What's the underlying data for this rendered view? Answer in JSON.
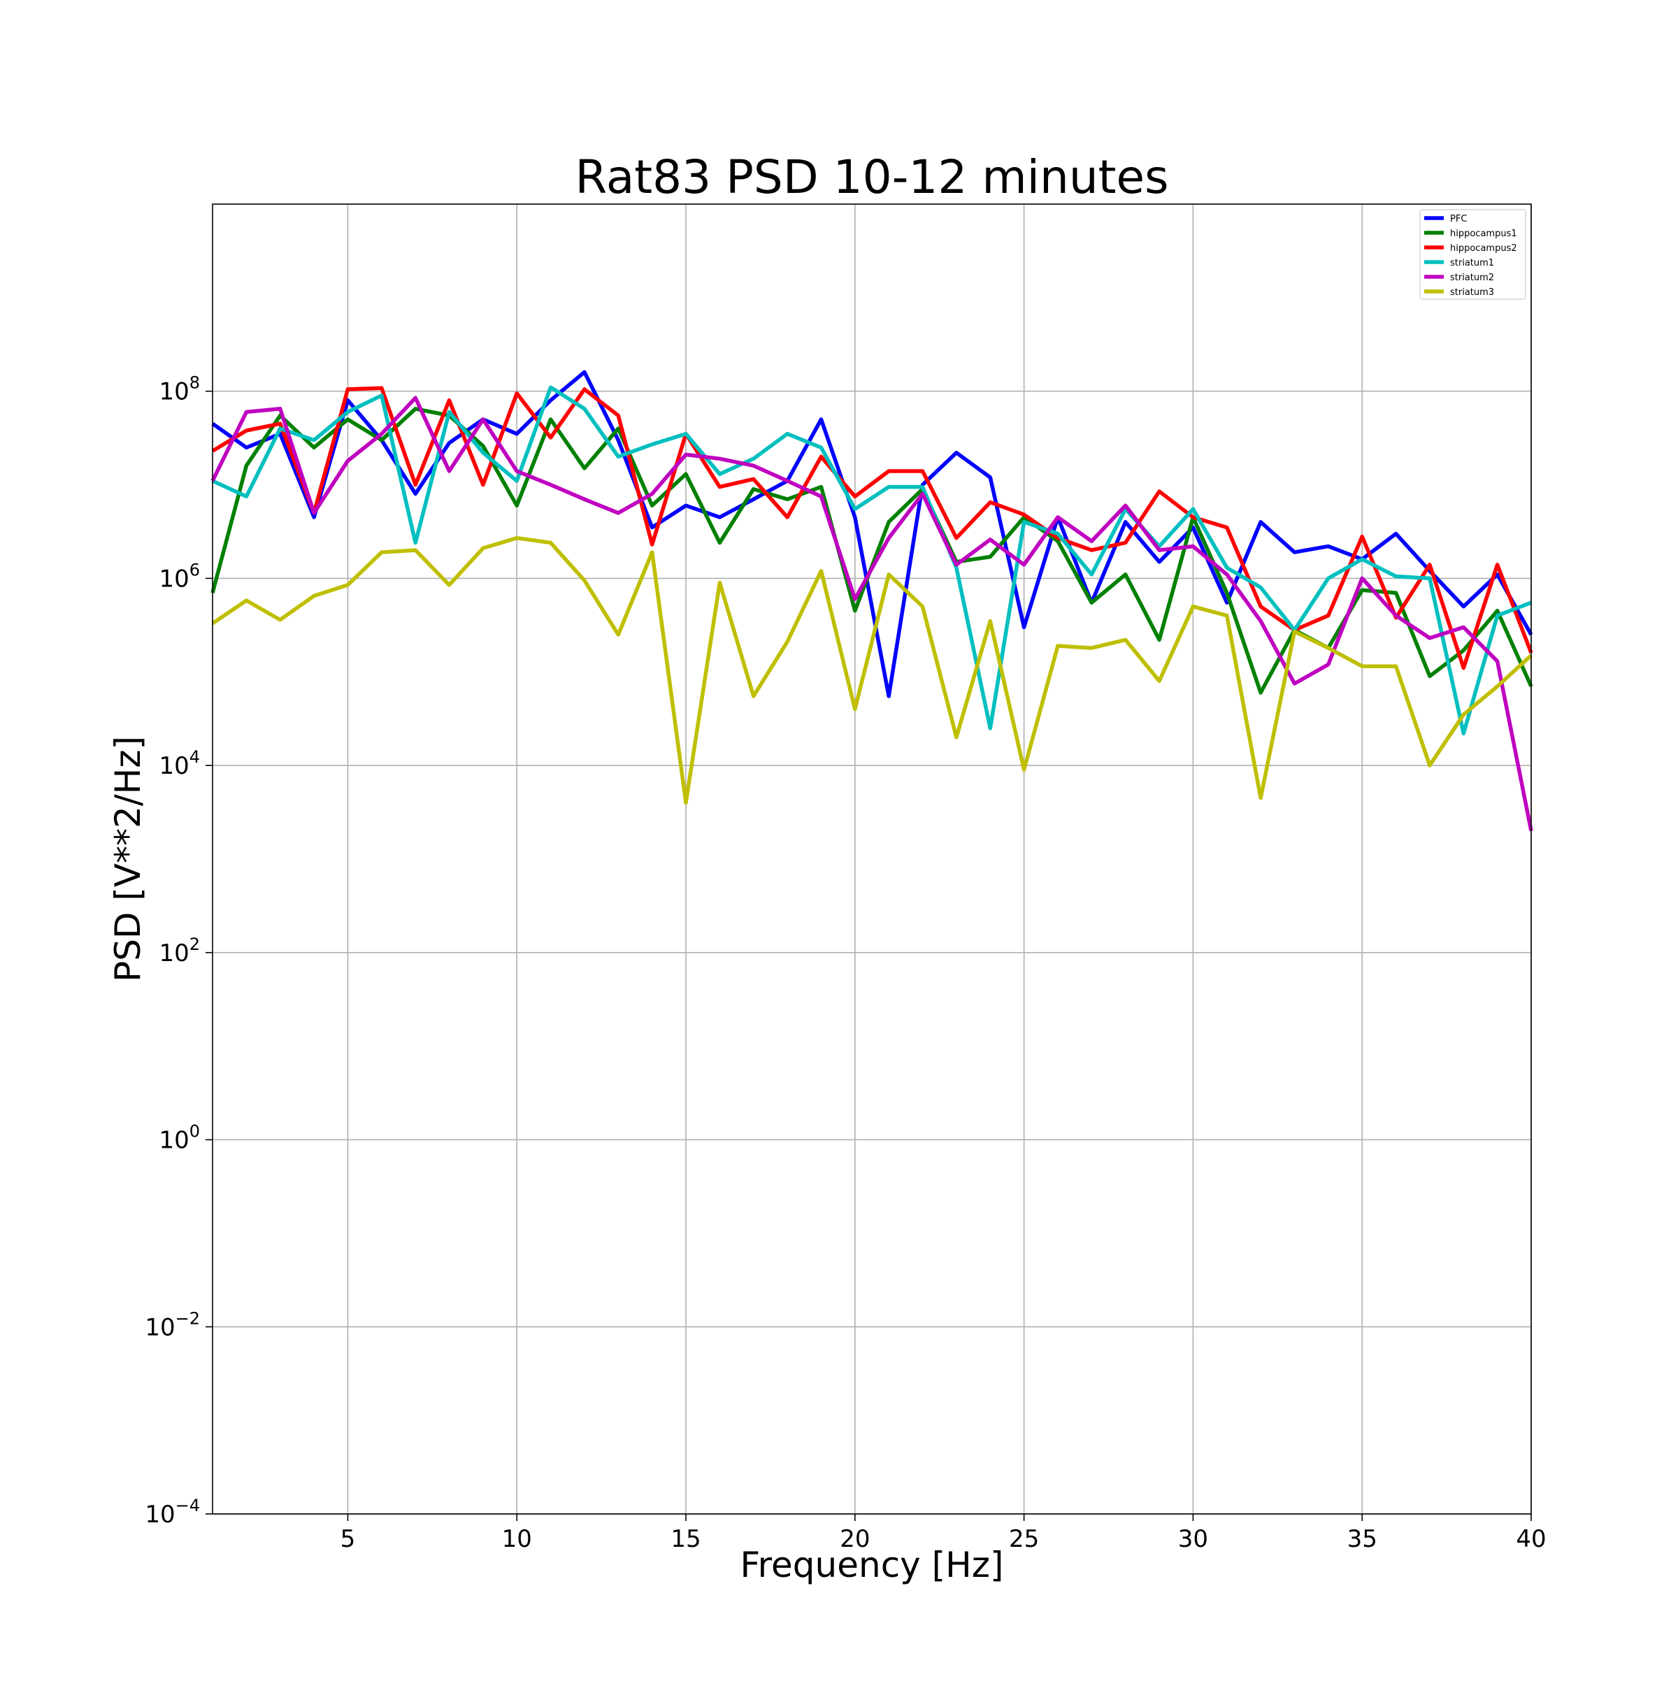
{
  "chart_data": {
    "type": "line",
    "title": "Rat83 PSD 10-12 minutes",
    "xlabel": "Frequency [Hz]",
    "ylabel": "PSD [V**2/Hz]",
    "xlim": [
      1,
      40
    ],
    "ylim": [
      0.0001,
      10000000000
    ],
    "yscale": "log",
    "grid": true,
    "legend_position": "top-right",
    "x_ticks": [
      {
        "value": 5,
        "label": "5"
      },
      {
        "value": 10,
        "label": "10"
      },
      {
        "value": 15,
        "label": "15"
      },
      {
        "value": 20,
        "label": "20"
      },
      {
        "value": 25,
        "label": "25"
      },
      {
        "value": 30,
        "label": "30"
      },
      {
        "value": 35,
        "label": "35"
      },
      {
        "value": 40,
        "label": "40"
      }
    ],
    "y_ticks": [
      {
        "value": 0.0001,
        "base": "10",
        "exp": "−4"
      },
      {
        "value": 0.01,
        "base": "10",
        "exp": "−2"
      },
      {
        "value": 1,
        "base": "10",
        "exp": "0"
      },
      {
        "value": 100,
        "base": "10",
        "exp": "2"
      },
      {
        "value": 10000,
        "base": "10",
        "exp": "4"
      },
      {
        "value": 1000000,
        "base": "10",
        "exp": "6"
      },
      {
        "value": 100000000,
        "base": "10",
        "exp": "8"
      }
    ],
    "x": [
      1,
      2,
      3,
      4,
      5,
      6,
      7,
      8,
      9,
      10,
      11,
      12,
      13,
      14,
      15,
      16,
      17,
      18,
      19,
      20,
      21,
      22,
      23,
      24,
      25,
      26,
      27,
      28,
      29,
      30,
      31,
      32,
      33,
      34,
      35,
      36,
      37,
      38,
      39,
      40
    ],
    "series": [
      {
        "name": "PFC",
        "color": "#0000ff",
        "values": [
          45000000.0,
          25000000.0,
          35000000.0,
          4500000.0,
          80000000.0,
          30000000.0,
          8000000.0,
          28000000.0,
          50000000.0,
          35000000.0,
          80000000.0,
          160000000.0,
          30000000.0,
          3500000.0,
          6000000.0,
          4500000.0,
          7000000.0,
          11000000.0,
          50000000.0,
          4500000.0,
          55000.0,
          10000000.0,
          22000000.0,
          12000000.0,
          300000.0,
          4500000.0,
          550000.0,
          4000000.0,
          1500000.0,
          3500000.0,
          550000.0,
          4000000.0,
          1900000.0,
          2200000.0,
          1600000.0,
          3000000.0,
          1200000.0,
          500000.0,
          1100000.0,
          250000.0
        ]
      },
      {
        "name": "hippocampus1",
        "color": "#008000",
        "values": [
          700000.0,
          16000000.0,
          55000000.0,
          25000000.0,
          50000000.0,
          30000000.0,
          65000000.0,
          55000000.0,
          26000000.0,
          6000000.0,
          50000000.0,
          15000000.0,
          40000000.0,
          6000000.0,
          13000000.0,
          2400000.0,
          9000000.0,
          7000000.0,
          9500000.0,
          450000.0,
          4000000.0,
          9000000.0,
          1500000.0,
          1700000.0,
          4500000.0,
          2500000.0,
          550000.0,
          1100000.0,
          220000.0,
          4500000.0,
          700000.0,
          60000.0,
          280000.0,
          180000.0,
          750000.0,
          700000.0,
          90000.0,
          170000.0,
          450000.0,
          70000.0
        ]
      },
      {
        "name": "hippocampus2",
        "color": "#ff0000",
        "values": [
          23000000.0,
          38000000.0,
          45000000.0,
          5000000.0,
          105000000.0,
          108000000.0,
          10000000.0,
          80000000.0,
          10000000.0,
          95000000.0,
          32000000.0,
          105000000.0,
          55000000.0,
          2300000.0,
          35000000.0,
          9500000.0,
          11500000.0,
          4500000.0,
          20000000.0,
          7500000.0,
          14000000.0,
          14000000.0,
          2700000.0,
          6500000.0,
          4800000.0,
          2700000.0,
          2000000.0,
          2400000.0,
          8500000.0,
          4500000.0,
          3500000.0,
          500000.0,
          280000.0,
          400000.0,
          2800000.0,
          380000.0,
          1400000.0,
          110000.0,
          1400000.0,
          160000.0
        ]
      },
      {
        "name": "striatum1",
        "color": "#00bfbf",
        "values": [
          11000000.0,
          7500000.0,
          40000000.0,
          30000000.0,
          60000000.0,
          90000000.0,
          2400000.0,
          60000000.0,
          22000000.0,
          11000000.0,
          110000000.0,
          65000000.0,
          20000000.0,
          27000000.0,
          35000000.0,
          13000000.0,
          19000000.0,
          35000000.0,
          25000000.0,
          5500000.0,
          9500000.0,
          9500000.0,
          1300000.0,
          25000.0,
          4000000.0,
          3000000.0,
          1100000.0,
          5500000.0,
          2200000.0,
          5500000.0,
          1300000.0,
          800000.0,
          280000.0,
          1000000.0,
          1600000.0,
          1050000.0,
          1000000.0,
          22000.0,
          400000.0,
          550000.0
        ]
      },
      {
        "name": "striatum2",
        "color": "#bf00bf",
        "values": [
          11000000.0,
          60000000.0,
          65000000.0,
          5000000.0,
          18000000.0,
          35000000.0,
          85000000.0,
          14000000.0,
          50000000.0,
          14000000.0,
          10000000.0,
          7000000.0,
          5000000.0,
          8000000.0,
          21000000.0,
          19000000.0,
          16000000.0,
          11000000.0,
          7500000.0,
          600000.0,
          2700000.0,
          8000000.0,
          1400000.0,
          2600000.0,
          1400000.0,
          4500000.0,
          2500000.0,
          6000000.0,
          2000000.0,
          2200000.0,
          1100000.0,
          350000.0,
          75000.0,
          120000.0,
          1000000.0,
          400000.0,
          230000.0,
          300000.0,
          130000.0,
          2000.0
        ]
      },
      {
        "name": "striatum3",
        "color": "#bfbf00",
        "values": [
          330000.0,
          580000.0,
          360000.0,
          650000.0,
          850000.0,
          1900000.0,
          2000000.0,
          850000.0,
          2100000.0,
          2700000.0,
          2400000.0,
          950000.0,
          250000.0,
          1900000.0,
          4000.0,
          900000.0,
          55000.0,
          210000.0,
          1200000.0,
          40000.0,
          1100000.0,
          500000.0,
          20000.0,
          350000.0,
          9000.0,
          190000.0,
          180000.0,
          220000.0,
          80000.0,
          500000.0,
          400000.0,
          4500.0,
          270000.0,
          180000.0,
          115000.0,
          115000.0,
          10000.0,
          35000.0,
          70000.0,
          150000.0
        ]
      }
    ]
  }
}
